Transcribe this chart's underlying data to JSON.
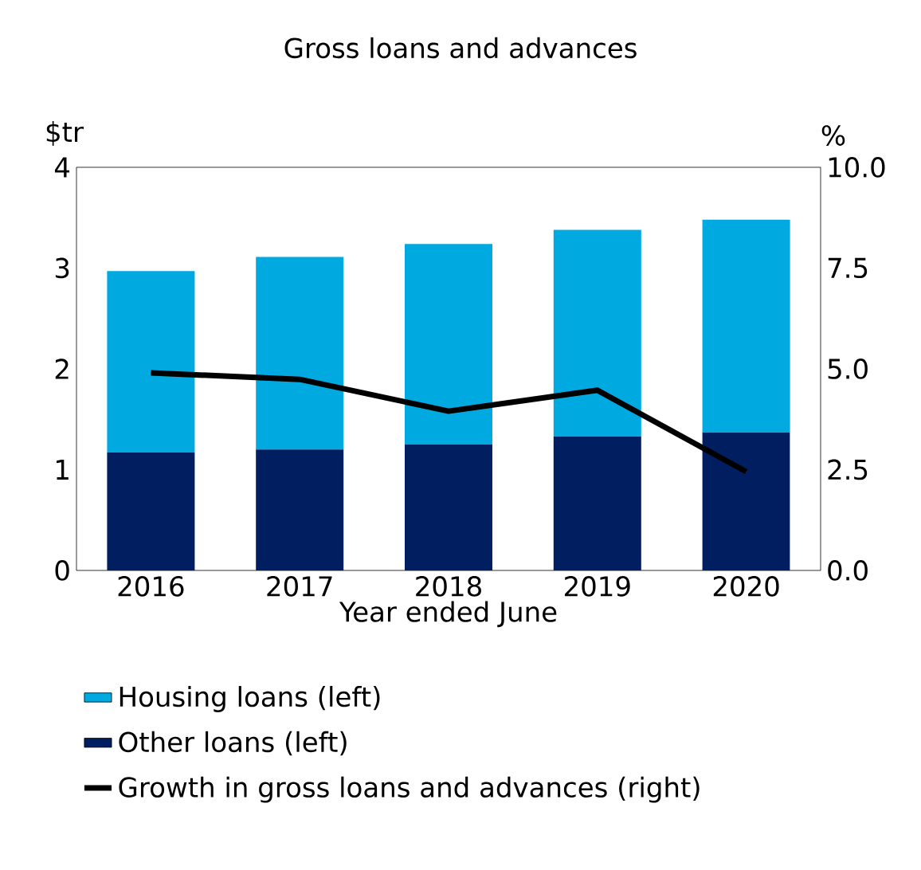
{
  "chart_data": {
    "type": "bar",
    "title": "Gross loans and advances",
    "xlabel": "Year ended June",
    "ylabel": "$tr",
    "y2label": "%",
    "categories": [
      "2016",
      "2017",
      "2018",
      "2019",
      "2020"
    ],
    "stacked": true,
    "series": [
      {
        "name": "Other loans (left)",
        "color": "#001e60",
        "values": [
          1.17,
          1.2,
          1.25,
          1.33,
          1.37
        ]
      },
      {
        "name": "Housing loans (left)",
        "color": "#00a9e0",
        "values": [
          1.8,
          1.91,
          1.99,
          2.05,
          2.11
        ]
      },
      {
        "name": "Growth in gross loans and advances (right)",
        "type": "line",
        "axis": "y2",
        "color": "#000000",
        "values": [
          4.9,
          4.74,
          3.95,
          4.47,
          2.45
        ]
      }
    ],
    "ylim": [
      0,
      4
    ],
    "yticks": [
      0,
      1,
      2,
      3,
      4
    ],
    "y2lim": [
      0,
      10
    ],
    "y2ticks": [
      {
        "value": 0,
        "label": "0.0"
      },
      {
        "value": 2.5,
        "label": "2.5"
      },
      {
        "value": 5,
        "label": "5.0"
      },
      {
        "value": 7.5,
        "label": "7.5"
      },
      {
        "value": 10,
        "label": "10.0"
      }
    ],
    "legend": "bottom"
  }
}
